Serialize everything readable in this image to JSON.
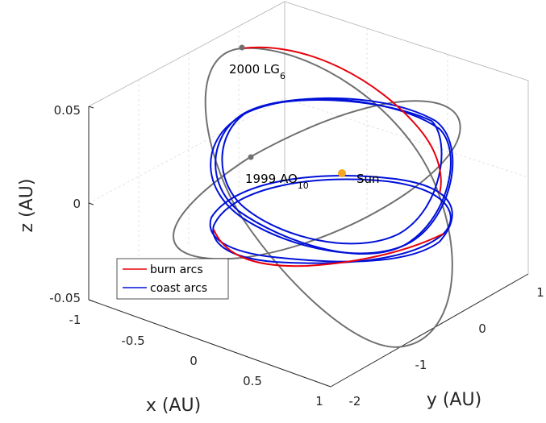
{
  "chart_data": {
    "type": "line",
    "dimension": "3d",
    "xlabel": "x (AU)",
    "ylabel": "y (AU)",
    "zlabel": "z (AU)",
    "xlim": [
      -1,
      1
    ],
    "ylim": [
      -2,
      1
    ],
    "zlim": [
      -0.05,
      0.05
    ],
    "x_ticks": [
      "-1",
      "-0.5",
      "0",
      "0.5",
      "1"
    ],
    "y_ticks": [
      "-2",
      "-1",
      "0",
      "1"
    ],
    "z_ticks": [
      "-0.05",
      "0",
      "0.05"
    ],
    "grid": true,
    "legend_position": "bottom-left",
    "legend": [
      {
        "name": "burn arcs",
        "color": "#e8000b"
      },
      {
        "name": "coast arcs",
        "color": "#0010d8"
      }
    ],
    "orbit_color": "#707070",
    "annotations": [
      {
        "base": "2000 LG",
        "sub": "6",
        "x": -0.8,
        "y": -0.35,
        "z": 0.04
      },
      {
        "base": "1999 AO",
        "sub": "10",
        "x": -0.15,
        "y": -0.85,
        "z": 0.015
      },
      {
        "base": "Sun",
        "sub": "",
        "x": 0,
        "y": 0,
        "z": 0,
        "color": "#f5a623"
      }
    ]
  }
}
